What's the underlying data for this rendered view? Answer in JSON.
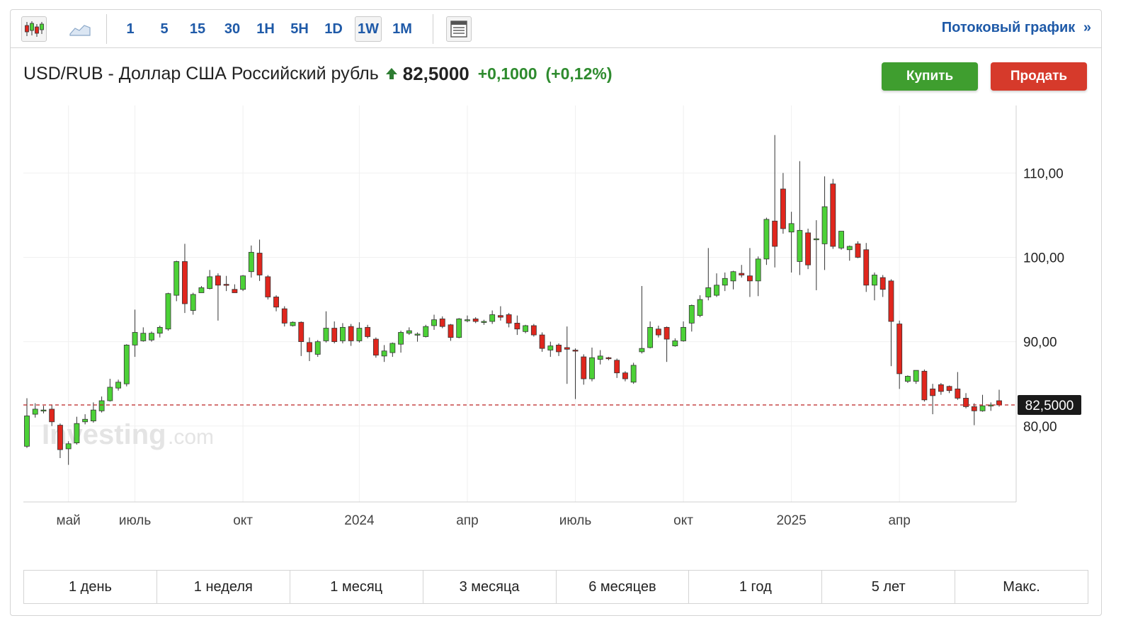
{
  "toolbar": {
    "chart_type_icons": [
      "candlestick-icon",
      "area-chart-icon"
    ],
    "intervals": [
      "1",
      "5",
      "15",
      "30",
      "1H",
      "5H",
      "1D",
      "1W",
      "1M"
    ],
    "active_interval": "1W",
    "settings_icon": "table-icon",
    "stream_link": "Потоковый график",
    "stream_link_icon": "double-chevron-right-icon"
  },
  "header": {
    "title": "USD/RUB - Доллар США Российский рубль",
    "price": "82,5000",
    "change": "+0,1000",
    "change_pct": "(+0,12%)",
    "direction_icon": "up-arrow-icon"
  },
  "actions": {
    "buy": "Купить",
    "sell": "Продать"
  },
  "watermark": {
    "brand": "Investing",
    "suffix": ".com"
  },
  "ranges": [
    "1 день",
    "1 неделя",
    "1 месяц",
    "3 месяца",
    "6 месяцев",
    "1 год",
    "5 лет",
    "Макс."
  ],
  "colors": {
    "up": "#4cd137",
    "down": "#e0261d",
    "accent": "#1f5aa8",
    "buy": "#3f9e2f",
    "sell": "#d63a2b"
  },
  "chart_data": {
    "type": "candlestick",
    "interval": "1W",
    "y_ticks": [
      "110,00",
      "100,00",
      "90,00",
      "80,00"
    ],
    "x_ticks": [
      "май",
      "июль",
      "окт",
      "2024",
      "апр",
      "июль",
      "окт",
      "2025",
      "апр"
    ],
    "ylim": [
      71,
      118
    ],
    "current_price_label": "82,5000",
    "current_price": 82.5,
    "grid": true,
    "candles": [
      [
        77.6,
        81.2,
        77.4,
        83.3
      ],
      [
        81.4,
        82.0,
        81.0,
        82.7
      ],
      [
        81.8,
        81.9,
        81.5,
        82.4
      ],
      [
        82.0,
        80.5,
        80.0,
        82.5
      ],
      [
        80.1,
        77.2,
        76.2,
        80.3
      ],
      [
        77.3,
        77.9,
        75.4,
        78.2
      ],
      [
        78.0,
        80.3,
        77.8,
        81.1
      ],
      [
        80.5,
        80.8,
        80.2,
        81.4
      ],
      [
        80.6,
        81.9,
        80.4,
        82.8
      ],
      [
        81.8,
        83.0,
        81.6,
        83.5
      ],
      [
        83.0,
        84.6,
        82.9,
        85.6
      ],
      [
        84.5,
        85.2,
        84.2,
        85.5
      ],
      [
        85.0,
        89.6,
        84.7,
        89.7
      ],
      [
        89.6,
        91.1,
        88.2,
        93.8
      ],
      [
        90.1,
        91.0,
        90.0,
        91.7
      ],
      [
        90.2,
        91.0,
        90.0,
        91.2
      ],
      [
        91.0,
        91.7,
        90.5,
        91.9
      ],
      [
        91.5,
        95.7,
        91.3,
        95.8
      ],
      [
        95.5,
        99.5,
        94.8,
        99.6
      ],
      [
        99.5,
        94.5,
        93.4,
        101.6
      ],
      [
        93.7,
        95.6,
        93.2,
        95.8
      ],
      [
        95.8,
        96.4,
        95.8,
        96.6
      ],
      [
        96.3,
        97.7,
        96.2,
        98.5
      ],
      [
        97.8,
        96.7,
        92.5,
        98.1
      ],
      [
        96.8,
        96.7,
        96.0,
        97.8
      ],
      [
        96.2,
        95.8,
        95.8,
        96.8
      ],
      [
        96.2,
        97.8,
        96.0,
        97.9
      ],
      [
        98.3,
        100.6,
        97.6,
        101.4
      ],
      [
        100.5,
        97.9,
        97.2,
        102.1
      ],
      [
        97.7,
        95.3,
        95.0,
        97.9
      ],
      [
        95.3,
        94.1,
        93.6,
        95.5
      ],
      [
        93.9,
        92.2,
        91.8,
        94.2
      ],
      [
        91.9,
        92.3,
        91.8,
        92.4
      ],
      [
        92.3,
        90.0,
        88.3,
        92.4
      ],
      [
        89.9,
        88.8,
        87.7,
        90.5
      ],
      [
        88.5,
        90.0,
        88.2,
        90.2
      ],
      [
        90.1,
        91.6,
        89.9,
        93.6
      ],
      [
        91.6,
        90.0,
        89.8,
        92.4
      ],
      [
        90.1,
        91.7,
        89.8,
        92.2
      ],
      [
        91.8,
        90.1,
        89.5,
        92.1
      ],
      [
        90.1,
        91.6,
        89.9,
        92.3
      ],
      [
        91.7,
        90.6,
        90.4,
        92.0
      ],
      [
        90.3,
        88.4,
        88.1,
        90.5
      ],
      [
        88.3,
        88.9,
        87.6,
        89.6
      ],
      [
        88.7,
        89.8,
        88.2,
        89.9
      ],
      [
        89.7,
        91.1,
        88.7,
        91.3
      ],
      [
        91.0,
        91.3,
        90.8,
        91.7
      ],
      [
        90.8,
        90.9,
        90.0,
        91.1
      ],
      [
        90.6,
        91.8,
        90.5,
        92.0
      ],
      [
        91.9,
        92.6,
        91.4,
        93.2
      ],
      [
        92.7,
        91.8,
        91.6,
        93.0
      ],
      [
        92.0,
        90.5,
        90.1,
        92.1
      ],
      [
        90.5,
        92.7,
        90.4,
        92.8
      ],
      [
        92.5,
        92.6,
        92.3,
        93.1
      ],
      [
        92.7,
        92.4,
        92.2,
        92.9
      ],
      [
        92.4,
        92.4,
        92.0,
        92.6
      ],
      [
        92.4,
        93.2,
        92.1,
        93.7
      ],
      [
        93.1,
        92.9,
        92.5,
        94.2
      ],
      [
        93.2,
        92.2,
        91.7,
        93.4
      ],
      [
        92.2,
        91.5,
        90.8,
        93.1
      ],
      [
        91.2,
        91.9,
        91.0,
        92.0
      ],
      [
        91.9,
        90.8,
        90.6,
        92.1
      ],
      [
        90.8,
        89.2,
        88.8,
        91.1
      ],
      [
        89.0,
        89.5,
        88.2,
        90.0
      ],
      [
        89.6,
        88.8,
        88.3,
        89.8
      ],
      [
        89.3,
        89.1,
        85.0,
        91.8
      ],
      [
        89.0,
        88.9,
        83.2,
        89.2
      ],
      [
        88.2,
        85.6,
        84.9,
        88.5
      ],
      [
        85.6,
        88.1,
        85.3,
        89.3
      ],
      [
        87.9,
        88.3,
        87.3,
        89.0
      ],
      [
        88.1,
        88.0,
        87.8,
        88.2
      ],
      [
        87.8,
        86.3,
        85.7,
        88.0
      ],
      [
        86.3,
        85.6,
        85.3,
        86.5
      ],
      [
        85.2,
        87.2,
        85.0,
        87.5
      ],
      [
        88.8,
        89.2,
        88.6,
        96.6
      ],
      [
        89.3,
        91.7,
        89.2,
        92.4
      ],
      [
        91.5,
        90.8,
        90.5,
        91.9
      ],
      [
        91.7,
        90.3,
        87.6,
        91.8
      ],
      [
        89.5,
        90.1,
        89.4,
        90.4
      ],
      [
        90.1,
        91.7,
        90.0,
        92.4
      ],
      [
        92.2,
        94.3,
        91.2,
        94.4
      ],
      [
        93.1,
        95.0,
        92.9,
        95.5
      ],
      [
        95.3,
        96.4,
        94.9,
        101.1
      ],
      [
        95.5,
        96.7,
        95.3,
        98.1
      ],
      [
        96.7,
        97.5,
        96.0,
        98.2
      ],
      [
        97.2,
        98.3,
        96.2,
        98.4
      ],
      [
        98.1,
        97.9,
        97.6,
        99.1
      ],
      [
        97.8,
        97.2,
        95.3,
        101.1
      ],
      [
        97.2,
        99.8,
        95.4,
        100.1
      ],
      [
        99.8,
        104.5,
        99.1,
        104.7
      ],
      [
        104.3,
        101.3,
        98.8,
        114.5
      ],
      [
        108.1,
        103.4,
        102.8,
        110.0
      ],
      [
        103.0,
        104.0,
        98.2,
        105.4
      ],
      [
        99.5,
        103.2,
        97.9,
        111.4
      ],
      [
        102.9,
        99.1,
        98.6,
        103.4
      ],
      [
        102.2,
        102.2,
        96.1,
        104.4
      ],
      [
        101.6,
        106.0,
        98.5,
        109.6
      ],
      [
        108.7,
        101.3,
        101.0,
        109.3
      ],
      [
        101.1,
        103.1,
        100.9,
        103.1
      ],
      [
        100.9,
        101.3,
        99.6,
        101.4
      ],
      [
        101.6,
        100.0,
        99.9,
        101.9
      ],
      [
        100.9,
        96.7,
        95.9,
        101.7
      ],
      [
        96.7,
        97.9,
        94.9,
        98.2
      ],
      [
        97.6,
        96.2,
        95.3,
        97.9
      ],
      [
        97.2,
        92.4,
        87.1,
        97.4
      ],
      [
        92.1,
        86.2,
        84.4,
        92.5
      ],
      [
        85.3,
        85.9,
        85.1,
        86.0
      ],
      [
        85.3,
        86.6,
        85.0,
        86.6
      ],
      [
        86.5,
        83.1,
        82.9,
        86.7
      ],
      [
        84.4,
        83.6,
        81.4,
        85.0
      ],
      [
        84.9,
        84.1,
        83.7,
        85.1
      ],
      [
        84.7,
        84.2,
        83.9,
        84.8
      ],
      [
        84.4,
        83.3,
        83.1,
        86.4
      ],
      [
        83.3,
        82.3,
        82.1,
        83.9
      ],
      [
        82.3,
        81.8,
        80.1,
        82.7
      ],
      [
        81.8,
        82.4,
        81.7,
        83.7
      ],
      [
        82.4,
        82.5,
        81.8,
        82.8
      ],
      [
        83.0,
        82.5,
        82.3,
        84.3
      ]
    ]
  }
}
